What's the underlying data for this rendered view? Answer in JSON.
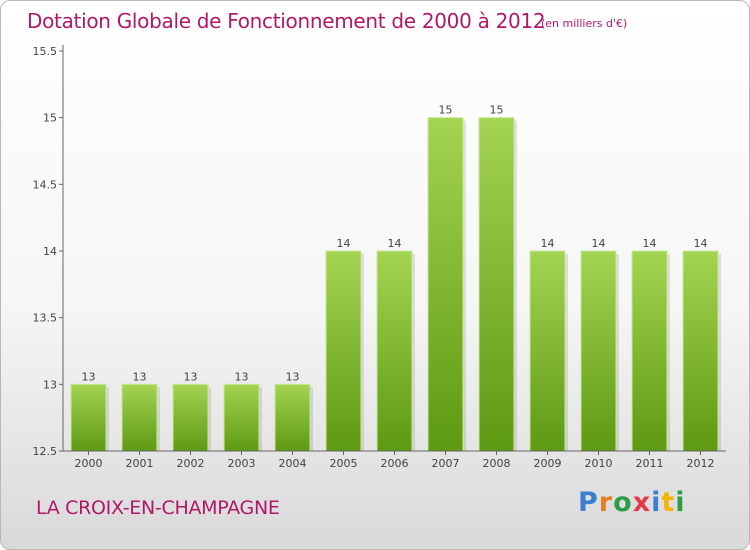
{
  "header": {
    "title": "Dotation Globale de Fonctionnement de 2000 à 2012",
    "subtitle": "(en milliers d'€)"
  },
  "footer": {
    "commune": "LA CROIX-EN-CHAMPAGNE",
    "logo": "Proxiti"
  },
  "logo_letters": [
    {
      "char": "P",
      "color": "#3b7fd0"
    },
    {
      "char": "r",
      "color": "#e67e22"
    },
    {
      "char": "o",
      "color": "#2e9e44"
    },
    {
      "char": "x",
      "color": "#e63946"
    },
    {
      "char": "i",
      "color": "#3b7fd0"
    },
    {
      "char": "t",
      "color": "#f4b400"
    },
    {
      "char": "i",
      "color": "#2e9e44"
    }
  ],
  "colors": {
    "accent": "#b0186a",
    "bar_light": "#9fd04e",
    "bar_dark": "#5f9a13"
  },
  "chart_data": {
    "type": "bar",
    "title": "Dotation Globale de Fonctionnement de 2000 à 2012",
    "subtitle": "(en milliers d'€)",
    "categories": [
      "2000",
      "2001",
      "2002",
      "2003",
      "2004",
      "2005",
      "2006",
      "2007",
      "2008",
      "2009",
      "2010",
      "2011",
      "2012"
    ],
    "values": [
      13,
      13,
      13,
      13,
      13,
      14,
      14,
      15,
      15,
      14,
      14,
      14,
      14
    ],
    "data_labels": [
      "13",
      "13",
      "13",
      "13",
      "13",
      "14",
      "14",
      "15",
      "15",
      "14",
      "14",
      "14",
      "14"
    ],
    "yticks": [
      "12.5",
      "13",
      "13.5",
      "14",
      "14.5",
      "15",
      "15.5"
    ],
    "ylim": [
      12.5,
      15.5
    ],
    "xlabel": "",
    "ylabel": "",
    "grid": false,
    "legend": "none"
  }
}
